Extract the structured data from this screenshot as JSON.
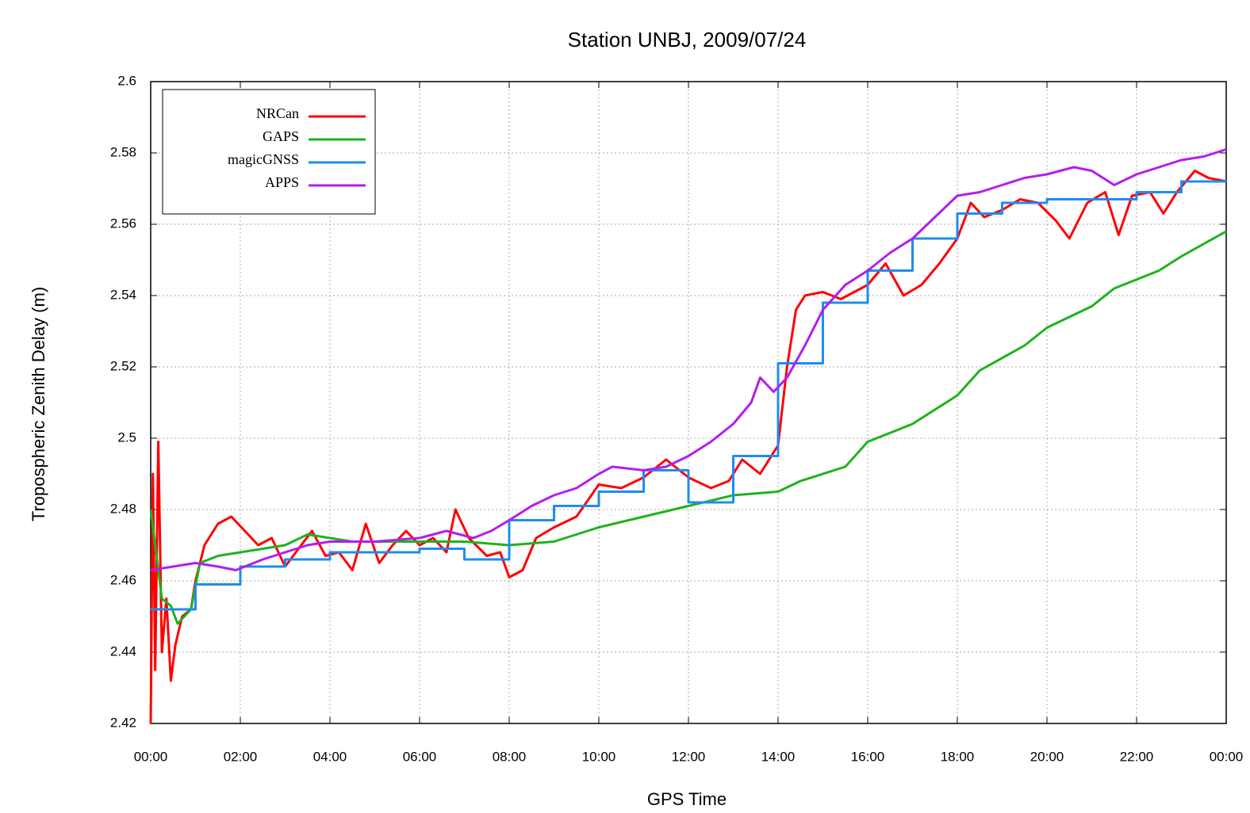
{
  "chart_data": {
    "type": "line",
    "title": "Station UNBJ, 2009/07/24",
    "x_label": "GPS Time",
    "y_label": "Tropospheric Zenith Delay (m)",
    "xlim": [
      0,
      24
    ],
    "ylim": [
      2.42,
      2.6
    ],
    "xticks": [
      {
        "value": 0,
        "label": "00:00"
      },
      {
        "value": 2,
        "label": "02:00"
      },
      {
        "value": 4,
        "label": "04:00"
      },
      {
        "value": 6,
        "label": "06:00"
      },
      {
        "value": 8,
        "label": "08:00"
      },
      {
        "value": 10,
        "label": "10:00"
      },
      {
        "value": 12,
        "label": "12:00"
      },
      {
        "value": 14,
        "label": "14:00"
      },
      {
        "value": 16,
        "label": "16:00"
      },
      {
        "value": 18,
        "label": "18:00"
      },
      {
        "value": 20,
        "label": "20:00"
      },
      {
        "value": 22,
        "label": "22:00"
      },
      {
        "value": 24,
        "label": "00:00"
      }
    ],
    "yticks": [
      2.42,
      2.44,
      2.46,
      2.48,
      2.5,
      2.52,
      2.54,
      2.56,
      2.58,
      2.6
    ],
    "grid": true,
    "legend": "upper left",
    "series": [
      {
        "name": "NRCan",
        "color": "#ff0000",
        "x": [
          0,
          0.05,
          0.1,
          0.17,
          0.25,
          0.35,
          0.45,
          0.55,
          0.7,
          0.9,
          1.0,
          1.2,
          1.5,
          1.8,
          2.1,
          2.4,
          2.7,
          3.0,
          3.3,
          3.6,
          3.9,
          4.2,
          4.5,
          4.8,
          5.1,
          5.4,
          5.7,
          6.0,
          6.3,
          6.6,
          6.8,
          7.1,
          7.5,
          7.8,
          8.0,
          8.3,
          8.6,
          9.0,
          9.5,
          10.0,
          10.5,
          11.0,
          11.5,
          12.0,
          12.5,
          12.9,
          13.2,
          13.6,
          14.0,
          14.2,
          14.4,
          14.6,
          15.0,
          15.4,
          16.0,
          16.4,
          16.8,
          17.2,
          17.6,
          18.0,
          18.3,
          18.6,
          19.0,
          19.4,
          19.8,
          20.2,
          20.5,
          20.9,
          21.3,
          21.6,
          21.9,
          22.3,
          22.6,
          22.9,
          23.3,
          23.6,
          24.0
        ],
        "values": [
          2.42,
          2.49,
          2.435,
          2.499,
          2.44,
          2.455,
          2.432,
          2.442,
          2.45,
          2.452,
          2.46,
          2.47,
          2.476,
          2.478,
          2.474,
          2.47,
          2.472,
          2.464,
          2.469,
          2.474,
          2.467,
          2.468,
          2.463,
          2.476,
          2.465,
          2.47,
          2.474,
          2.47,
          2.472,
          2.468,
          2.48,
          2.472,
          2.467,
          2.468,
          2.461,
          2.463,
          2.472,
          2.475,
          2.478,
          2.487,
          2.486,
          2.489,
          2.494,
          2.489,
          2.486,
          2.488,
          2.494,
          2.49,
          2.498,
          2.52,
          2.536,
          2.54,
          2.541,
          2.539,
          2.543,
          2.549,
          2.54,
          2.543,
          2.549,
          2.556,
          2.566,
          2.562,
          2.564,
          2.567,
          2.566,
          2.561,
          2.556,
          2.566,
          2.569,
          2.557,
          2.568,
          2.569,
          2.563,
          2.569,
          2.575,
          2.573,
          2.572
        ]
      },
      {
        "name": "GAPS",
        "color": "#1db31d",
        "x": [
          0,
          0.1,
          0.25,
          0.45,
          0.6,
          0.9,
          1.1,
          1.5,
          2.0,
          2.5,
          3.0,
          3.5,
          4.0,
          4.5,
          5.0,
          6.0,
          7.0,
          8.0,
          9.0,
          10.0,
          11.0,
          12.0,
          13.0,
          14.0,
          14.5,
          15.5,
          16.0,
          17.0,
          18.0,
          18.5,
          19.5,
          20.0,
          21.0,
          21.5,
          22.5,
          23.0,
          24.0
        ],
        "values": [
          2.48,
          2.47,
          2.455,
          2.453,
          2.448,
          2.452,
          2.465,
          2.467,
          2.468,
          2.469,
          2.47,
          2.473,
          2.472,
          2.471,
          2.471,
          2.471,
          2.471,
          2.47,
          2.471,
          2.475,
          2.478,
          2.481,
          2.484,
          2.485,
          2.488,
          2.492,
          2.499,
          2.504,
          2.512,
          2.519,
          2.526,
          2.531,
          2.537,
          2.542,
          2.547,
          2.551,
          2.558
        ]
      },
      {
        "name": "magicGNSS",
        "color": "#1e8cf0",
        "x": [
          0,
          1,
          1,
          2,
          2,
          3,
          3,
          4,
          4,
          6,
          6,
          7,
          7,
          8,
          8,
          9,
          9,
          10,
          10,
          11,
          11,
          12,
          12,
          13,
          13,
          14,
          14,
          15,
          15,
          16,
          16,
          17,
          17,
          18,
          18,
          19,
          19,
          20,
          20,
          22,
          22,
          23,
          23,
          24
        ],
        "values": [
          2.452,
          2.452,
          2.459,
          2.459,
          2.464,
          2.464,
          2.466,
          2.466,
          2.468,
          2.468,
          2.469,
          2.469,
          2.466,
          2.466,
          2.477,
          2.477,
          2.481,
          2.481,
          2.485,
          2.485,
          2.491,
          2.491,
          2.482,
          2.482,
          2.495,
          2.495,
          2.521,
          2.521,
          2.538,
          2.538,
          2.547,
          2.547,
          2.556,
          2.556,
          2.563,
          2.563,
          2.566,
          2.566,
          2.567,
          2.567,
          2.569,
          2.569,
          2.572,
          2.572
        ]
      },
      {
        "name": "APPS",
        "color": "#b31df0",
        "x": [
          0,
          0.5,
          1.0,
          1.5,
          1.9,
          2.5,
          3.0,
          3.5,
          4.0,
          5.0,
          6.0,
          6.6,
          7.2,
          7.6,
          8.0,
          8.5,
          9.0,
          9.5,
          10.0,
          10.3,
          11.0,
          11.5,
          12.0,
          12.5,
          13.0,
          13.4,
          13.6,
          13.9,
          14.2,
          14.6,
          15.0,
          15.5,
          16.0,
          16.5,
          17.0,
          17.5,
          18.0,
          18.5,
          19.0,
          19.5,
          20.0,
          20.6,
          21.0,
          21.5,
          22.0,
          22.5,
          23.0,
          23.5,
          24.0
        ],
        "values": [
          2.463,
          2.464,
          2.465,
          2.464,
          2.463,
          2.466,
          2.468,
          2.47,
          2.471,
          2.471,
          2.472,
          2.474,
          2.472,
          2.474,
          2.477,
          2.481,
          2.484,
          2.486,
          2.49,
          2.492,
          2.491,
          2.492,
          2.495,
          2.499,
          2.504,
          2.51,
          2.517,
          2.513,
          2.517,
          2.526,
          2.536,
          2.543,
          2.547,
          2.552,
          2.556,
          2.562,
          2.568,
          2.569,
          2.571,
          2.573,
          2.574,
          2.576,
          2.575,
          2.571,
          2.574,
          2.576,
          2.578,
          2.579,
          2.581
        ]
      }
    ]
  }
}
